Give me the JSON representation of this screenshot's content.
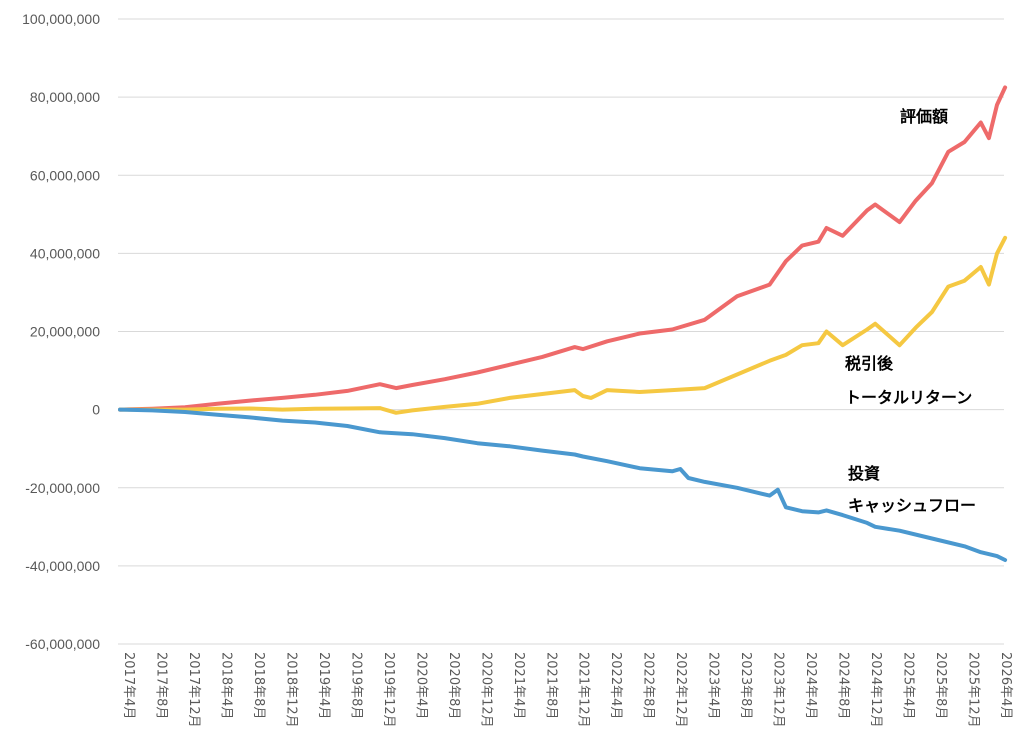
{
  "chart_data": {
    "type": "line",
    "title": "",
    "xlabel": "",
    "ylabel": "",
    "ylim": [
      -60000000,
      100000000
    ],
    "y_ticks": [
      100000000,
      80000000,
      60000000,
      40000000,
      20000000,
      0,
      -20000000,
      -40000000,
      -60000000
    ],
    "y_tick_labels": [
      "100,000,000",
      "80,000,000",
      "60,000,000",
      "40,000,000",
      "20,000,000",
      "0",
      "-20,000,000",
      "-40,000,000",
      "-60,000,000"
    ],
    "grid": true,
    "x_start": "2017-04",
    "x_end": "2026-04",
    "x_tick_labels": [
      "2017年4月",
      "2017年8月",
      "2017年12月",
      "2018年4月",
      "2018年8月",
      "2018年12月",
      "2019年4月",
      "2019年8月",
      "2019年12月",
      "2020年4月",
      "2020年8月",
      "2020年12月",
      "2021年4月",
      "2021年8月",
      "2021年12月",
      "2022年4月",
      "2022年8月",
      "2022年12月",
      "2023年4月",
      "2023年8月",
      "2023年12月",
      "2024年4月",
      "2024年8月",
      "2024年12月",
      "2025年4月",
      "2025年8月",
      "2025年12月",
      "2026年4月"
    ],
    "series": [
      {
        "name": "評価額",
        "label_lines": [
          "評価額"
        ],
        "color": "#ee6a6a",
        "points": [
          [
            "2017-04",
            0
          ],
          [
            "2017-08",
            200000
          ],
          [
            "2017-12",
            600000
          ],
          [
            "2018-04",
            1500000
          ],
          [
            "2018-08",
            2300000
          ],
          [
            "2018-12",
            3000000
          ],
          [
            "2019-04",
            3800000
          ],
          [
            "2019-08",
            4800000
          ],
          [
            "2019-12",
            6500000
          ],
          [
            "2020-02",
            5500000
          ],
          [
            "2020-04",
            6300000
          ],
          [
            "2020-08",
            7800000
          ],
          [
            "2020-12",
            9500000
          ],
          [
            "2021-04",
            11500000
          ],
          [
            "2021-08",
            13500000
          ],
          [
            "2021-12",
            16000000
          ],
          [
            "2022-01",
            15500000
          ],
          [
            "2022-04",
            17500000
          ],
          [
            "2022-08",
            19500000
          ],
          [
            "2022-12",
            20500000
          ],
          [
            "2023-04",
            23000000
          ],
          [
            "2023-08",
            29000000
          ],
          [
            "2023-12",
            32000000
          ],
          [
            "2024-02",
            38000000
          ],
          [
            "2024-04",
            42000000
          ],
          [
            "2024-06",
            43000000
          ],
          [
            "2024-07",
            46500000
          ],
          [
            "2024-09",
            44500000
          ],
          [
            "2024-12",
            51000000
          ],
          [
            "2025-01",
            52500000
          ],
          [
            "2025-04",
            48000000
          ],
          [
            "2025-06",
            53500000
          ],
          [
            "2025-08",
            58000000
          ],
          [
            "2025-10",
            66000000
          ],
          [
            "2025-12",
            68500000
          ],
          [
            "2026-02",
            73500000
          ],
          [
            "2026-03",
            69500000
          ],
          [
            "2026-04",
            78000000
          ],
          [
            "2026-05",
            82500000
          ]
        ]
      },
      {
        "name": "税引後 トータルリターン",
        "label_lines": [
          "税引後",
          "トータルリターン"
        ],
        "color": "#f5c842",
        "points": [
          [
            "2017-04",
            0
          ],
          [
            "2017-08",
            0
          ],
          [
            "2017-12",
            0
          ],
          [
            "2018-04",
            200000
          ],
          [
            "2018-08",
            300000
          ],
          [
            "2018-12",
            0
          ],
          [
            "2019-04",
            200000
          ],
          [
            "2019-08",
            300000
          ],
          [
            "2019-12",
            400000
          ],
          [
            "2020-02",
            -800000
          ],
          [
            "2020-04",
            -200000
          ],
          [
            "2020-08",
            700000
          ],
          [
            "2020-12",
            1500000
          ],
          [
            "2021-04",
            3000000
          ],
          [
            "2021-08",
            4000000
          ],
          [
            "2021-12",
            5000000
          ],
          [
            "2022-01",
            3500000
          ],
          [
            "2022-02",
            3000000
          ],
          [
            "2022-04",
            5000000
          ],
          [
            "2022-08",
            4500000
          ],
          [
            "2022-12",
            5000000
          ],
          [
            "2023-04",
            5500000
          ],
          [
            "2023-08",
            9000000
          ],
          [
            "2023-12",
            12500000
          ],
          [
            "2024-02",
            14000000
          ],
          [
            "2024-04",
            16500000
          ],
          [
            "2024-06",
            17000000
          ],
          [
            "2024-07",
            20000000
          ],
          [
            "2024-09",
            16500000
          ],
          [
            "2024-12",
            20500000
          ],
          [
            "2025-01",
            22000000
          ],
          [
            "2025-04",
            16500000
          ],
          [
            "2025-06",
            21000000
          ],
          [
            "2025-08",
            25000000
          ],
          [
            "2025-10",
            31500000
          ],
          [
            "2025-12",
            33000000
          ],
          [
            "2026-02",
            36500000
          ],
          [
            "2026-03",
            32000000
          ],
          [
            "2026-04",
            40000000
          ],
          [
            "2026-05",
            44000000
          ]
        ]
      },
      {
        "name": "投資 キャッシュフロー",
        "label_lines": [
          "投資",
          "キャッシュフロー"
        ],
        "color": "#4a98cf",
        "points": [
          [
            "2017-04",
            0
          ],
          [
            "2017-08",
            -200000
          ],
          [
            "2017-12",
            -600000
          ],
          [
            "2018-04",
            -1300000
          ],
          [
            "2018-08",
            -2000000
          ],
          [
            "2018-12",
            -2800000
          ],
          [
            "2019-04",
            -3300000
          ],
          [
            "2019-08",
            -4200000
          ],
          [
            "2019-12",
            -5800000
          ],
          [
            "2020-04",
            -6300000
          ],
          [
            "2020-08",
            -7300000
          ],
          [
            "2020-12",
            -8600000
          ],
          [
            "2021-04",
            -9400000
          ],
          [
            "2021-08",
            -10500000
          ],
          [
            "2021-12",
            -11500000
          ],
          [
            "2022-01",
            -12000000
          ],
          [
            "2022-04",
            -13200000
          ],
          [
            "2022-08",
            -15000000
          ],
          [
            "2022-12",
            -15800000
          ],
          [
            "2023-01",
            -15200000
          ],
          [
            "2023-02",
            -17500000
          ],
          [
            "2023-04",
            -18500000
          ],
          [
            "2023-08",
            -20000000
          ],
          [
            "2023-12",
            -22000000
          ],
          [
            "2024-01",
            -20500000
          ],
          [
            "2024-02",
            -25000000
          ],
          [
            "2024-04",
            -26000000
          ],
          [
            "2024-06",
            -26300000
          ],
          [
            "2024-07",
            -25800000
          ],
          [
            "2024-09",
            -27000000
          ],
          [
            "2024-12",
            -29000000
          ],
          [
            "2025-01",
            -30000000
          ],
          [
            "2025-04",
            -31000000
          ],
          [
            "2025-08",
            -33000000
          ],
          [
            "2025-12",
            -35000000
          ],
          [
            "2026-02",
            -36500000
          ],
          [
            "2026-04",
            -37500000
          ],
          [
            "2026-05",
            -38500000
          ]
        ]
      }
    ]
  }
}
